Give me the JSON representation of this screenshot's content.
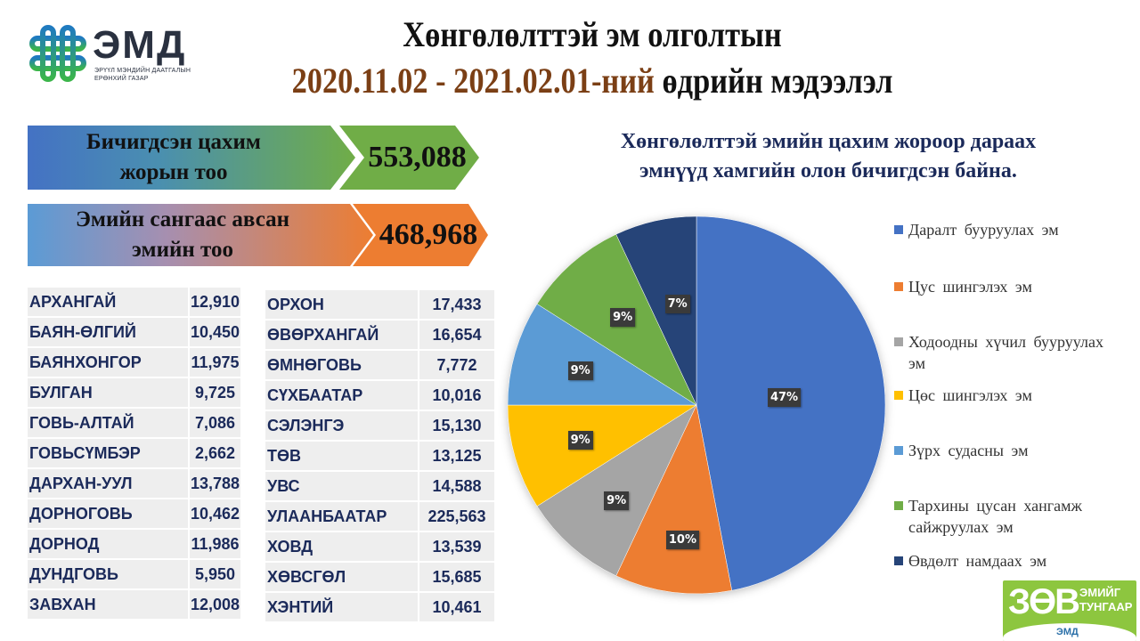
{
  "logo": {
    "name": "ЭМД",
    "subtitle_line1": "ЭРҮҮЛ МЭНДИЙН ДААТГАЛЫН",
    "subtitle_line2": "ЕРӨНХИЙ ГАЗАР",
    "icon": "emd-knot-icon"
  },
  "title": {
    "line1": "Хөнгөлөлттэй эм олголтын",
    "date_range": "2020.11.02 - 2021.02.01-ний",
    "line2_rest": " өдрийн мэдээлэл"
  },
  "stats": [
    {
      "label_line1": "Бичигдсэн цахим",
      "label_line2": "жорын тоо",
      "value": "553,088"
    },
    {
      "label_line1": "Эмийн сангаас авсан",
      "label_line2": "эмийн тоо",
      "value": "468,968"
    }
  ],
  "table_left": [
    {
      "name": "АРХАНГАЙ",
      "value": "12,910"
    },
    {
      "name": "БАЯН-ӨЛГИЙ",
      "value": "10,450"
    },
    {
      "name": "БАЯНХОНГОР",
      "value": "11,975"
    },
    {
      "name": "БУЛГАН",
      "value": "9,725"
    },
    {
      "name": "ГОВЬ-АЛТАЙ",
      "value": "7,086"
    },
    {
      "name": "ГОВЬСҮМБЭР",
      "value": "2,662"
    },
    {
      "name": "ДАРХАН-УУЛ",
      "value": "13,788"
    },
    {
      "name": "ДОРНОГОВЬ",
      "value": "10,462"
    },
    {
      "name": "ДОРНОД",
      "value": "11,986"
    },
    {
      "name": "ДУНДГОВЬ",
      "value": "5,950"
    },
    {
      "name": "ЗАВХАН",
      "value": "12,008"
    }
  ],
  "table_right": [
    {
      "name": "ОРХОН",
      "value": "17,433"
    },
    {
      "name": "ӨВӨРХАНГАЙ",
      "value": "16,654"
    },
    {
      "name": "ӨМНӨГОВЬ",
      "value": "7,772"
    },
    {
      "name": "СҮХБААТАР",
      "value": "10,016"
    },
    {
      "name": "СЭЛЭНГЭ",
      "value": "15,130"
    },
    {
      "name": "ТӨВ",
      "value": "13,125"
    },
    {
      "name": "УВС",
      "value": "14,588"
    },
    {
      "name": "УЛААНБААТАР",
      "value": "225,563"
    },
    {
      "name": "ХОВД",
      "value": "13,539"
    },
    {
      "name": "ХӨВСГӨЛ",
      "value": "15,685"
    },
    {
      "name": "ХЭНТИЙ",
      "value": "10,461"
    }
  ],
  "chart_title": {
    "line1": "Хөнгөлөлттэй  эмийн цахим жороор дараах",
    "line2": "эмнүүд хамгийн олон бичигдсэн байна."
  },
  "chart_data": {
    "type": "pie",
    "title": "Хөнгөлөлттэй  эмийн цахим жороор дараах эмнүүд хамгийн олон бичигдсэн байна.",
    "categories": [
      "Даралт бууруулах эм",
      "Цус шингэлэх эм",
      "Ходоодны хүчил бууруулах эм",
      "Цөс шингэлэх эм",
      "Зүрх судасны эм",
      "Тархины цусан хангамж сайжруулах эм",
      "Өвдөлт намдаах эм"
    ],
    "values": [
      47,
      10,
      9,
      9,
      9,
      9,
      7
    ],
    "labels": [
      "47%",
      "10%",
      "9%",
      "9%",
      "9%",
      "9%",
      "7%"
    ],
    "colors": [
      "#4472c4",
      "#ed7d31",
      "#a5a5a5",
      "#ffc000",
      "#5b9bd5",
      "#70ad47",
      "#264478"
    ],
    "start_angle": "12 o'clock, clockwise",
    "legend_position": "right",
    "unit": "%"
  },
  "badge": {
    "big": "ЗӨВ",
    "small_line1": "ЭМИЙГ",
    "small_line2": "ТУНГААР",
    "org": "ЭМД"
  }
}
